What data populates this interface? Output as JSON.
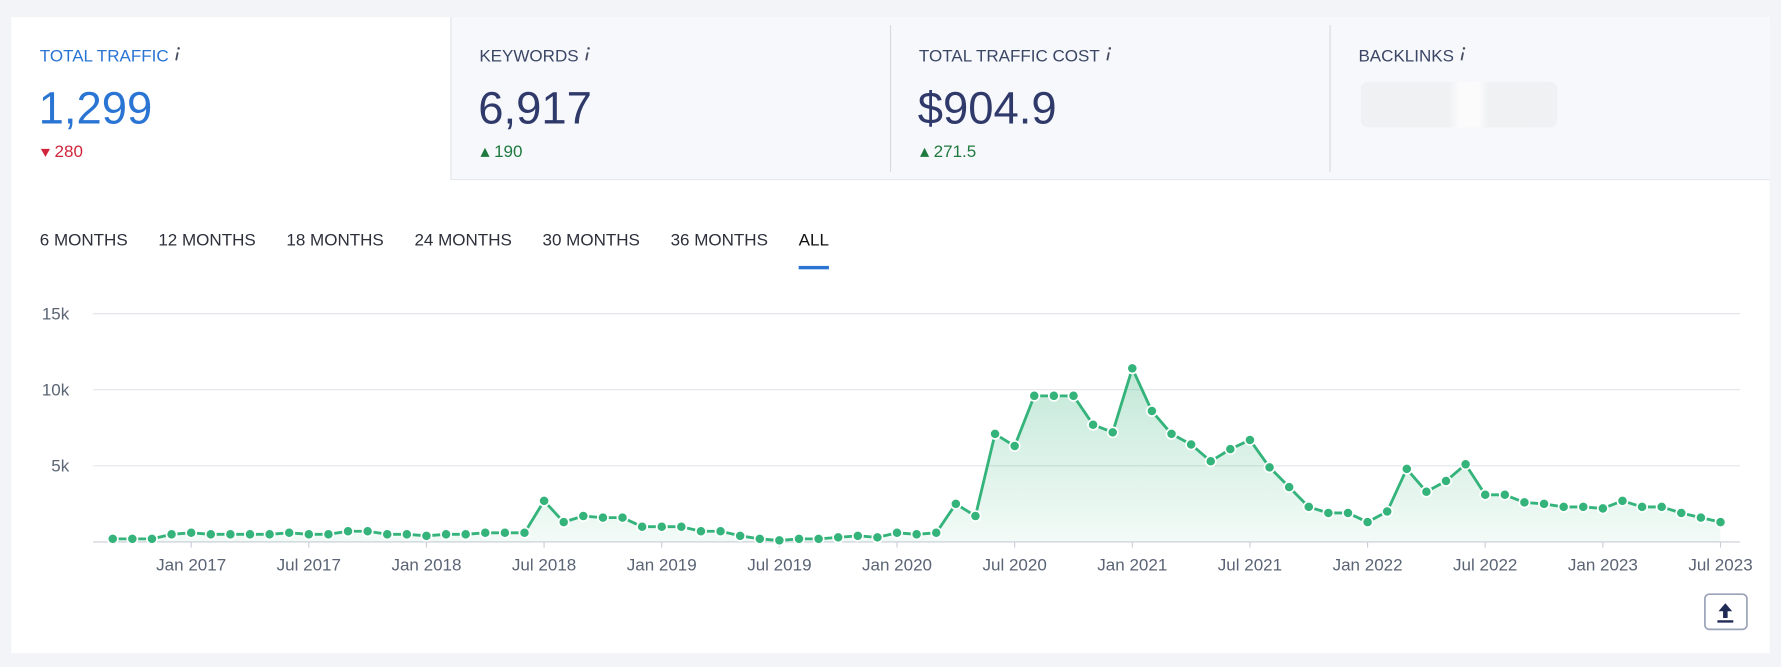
{
  "cards": [
    {
      "title": "TOTAL TRAFFIC",
      "value": "1,299",
      "change": "280",
      "direction": "down"
    },
    {
      "title": "KEYWORDS",
      "value": "6,917",
      "change": "190",
      "direction": "up"
    },
    {
      "title": "TOTAL TRAFFIC COST",
      "value": "$904.9",
      "change": "271.5",
      "direction": "up"
    },
    {
      "title": "BACKLINKS"
    }
  ],
  "tabs": [
    {
      "label": "6 MONTHS",
      "active": false
    },
    {
      "label": "12 MONTHS",
      "active": false
    },
    {
      "label": "18 MONTHS",
      "active": false
    },
    {
      "label": "24 MONTHS",
      "active": false
    },
    {
      "label": "30 MONTHS",
      "active": false
    },
    {
      "label": "36 MONTHS",
      "active": false
    },
    {
      "label": "ALL",
      "active": true
    }
  ],
  "chart_data": {
    "type": "line",
    "color": "#34b37b",
    "x": [
      "2016-09",
      "2016-10",
      "2016-11",
      "2016-12",
      "2017-01",
      "2017-02",
      "2017-03",
      "2017-04",
      "2017-05",
      "2017-06",
      "2017-07",
      "2017-08",
      "2017-09",
      "2017-10",
      "2017-11",
      "2017-12",
      "2018-01",
      "2018-02",
      "2018-03",
      "2018-04",
      "2018-05",
      "2018-06",
      "2018-07",
      "2018-08",
      "2018-09",
      "2018-10",
      "2018-11",
      "2018-12",
      "2019-01",
      "2019-02",
      "2019-03",
      "2019-04",
      "2019-05",
      "2019-06",
      "2019-07",
      "2019-08",
      "2019-09",
      "2019-10",
      "2019-11",
      "2019-12",
      "2020-01",
      "2020-02",
      "2020-03",
      "2020-04",
      "2020-05",
      "2020-06",
      "2020-07",
      "2020-08",
      "2020-09",
      "2020-10",
      "2020-11",
      "2020-12",
      "2021-01",
      "2021-02",
      "2021-03",
      "2021-04",
      "2021-05",
      "2021-06",
      "2021-07",
      "2021-08",
      "2021-09",
      "2021-10",
      "2021-11",
      "2021-12",
      "2022-01",
      "2022-02",
      "2022-03",
      "2022-04",
      "2022-05",
      "2022-06",
      "2022-07",
      "2022-08",
      "2022-09",
      "2022-10",
      "2022-11",
      "2022-12",
      "2023-01",
      "2023-02",
      "2023-03",
      "2023-04",
      "2023-05",
      "2023-06",
      "2023-07"
    ],
    "values": [
      200,
      200,
      200,
      500,
      600,
      500,
      500,
      500,
      500,
      600,
      500,
      500,
      700,
      700,
      500,
      500,
      400,
      500,
      500,
      600,
      600,
      600,
      2700,
      1300,
      1700,
      1600,
      1600,
      1000,
      1000,
      1000,
      700,
      700,
      400,
      200,
      100,
      200,
      200,
      300,
      400,
      300,
      600,
      500,
      600,
      2500,
      1700,
      7100,
      6300,
      9600,
      9600,
      9600,
      7700,
      7200,
      11400,
      8600,
      7100,
      6400,
      5300,
      6100,
      6700,
      4900,
      3600,
      2300,
      1900,
      1900,
      1300,
      2000,
      4800,
      3300,
      4000,
      5100,
      3100,
      3100,
      2600,
      2500,
      2300,
      2300,
      2200,
      2700,
      2300,
      2300,
      1900,
      1600,
      1299
    ],
    "xlim": [
      "2016-08",
      "2023-08"
    ],
    "xticks": [
      {
        "value": "2017-01",
        "label": "Jan 2017"
      },
      {
        "value": "2017-07",
        "label": "Jul 2017"
      },
      {
        "value": "2018-01",
        "label": "Jan 2018"
      },
      {
        "value": "2018-07",
        "label": "Jul 2018"
      },
      {
        "value": "2019-01",
        "label": "Jan 2019"
      },
      {
        "value": "2019-07",
        "label": "Jul 2019"
      },
      {
        "value": "2020-01",
        "label": "Jan 2020"
      },
      {
        "value": "2020-07",
        "label": "Jul 2020"
      },
      {
        "value": "2021-01",
        "label": "Jan 2021"
      },
      {
        "value": "2021-07",
        "label": "Jul 2021"
      },
      {
        "value": "2022-01",
        "label": "Jan 2022"
      },
      {
        "value": "2022-07",
        "label": "Jul 2022"
      },
      {
        "value": "2023-01",
        "label": "Jan 2023"
      },
      {
        "value": "2023-07",
        "label": "Jul 2023"
      }
    ],
    "ylim": [
      0,
      15000
    ],
    "yticks": [
      {
        "value": 5000,
        "label": "5k"
      },
      {
        "value": 10000,
        "label": "10k"
      },
      {
        "value": 15000,
        "label": "15k"
      }
    ],
    "grid": true
  }
}
